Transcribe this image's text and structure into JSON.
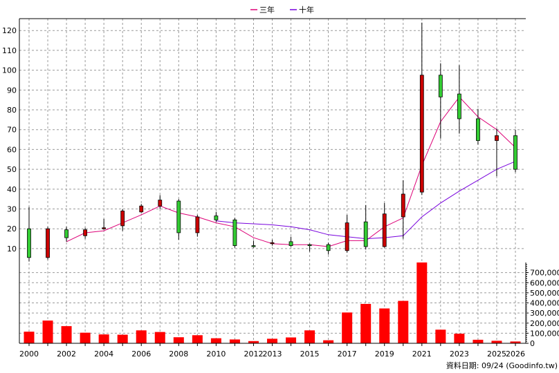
{
  "legend": {
    "placement": "top-center",
    "items": [
      {
        "label": "三年",
        "color": "#dd0077"
      },
      {
        "label": "十年",
        "color": "#7700dd"
      }
    ]
  },
  "footer_note": "資料日期: 09/24  (Goodinfo.tw)",
  "chart_data": [
    {
      "type": "candlestick",
      "title": "",
      "xlabel": "",
      "ylabel": "",
      "ylim": [
        3,
        126
      ],
      "yticks": [
        10,
        20,
        30,
        40,
        50,
        60,
        70,
        80,
        90,
        100,
        110,
        120
      ],
      "grid": true,
      "up_color": "#33cc33",
      "down_color": "#cc0000",
      "years": [
        2000,
        2001,
        2002,
        2003,
        2004,
        2005,
        2006,
        2007,
        2008,
        2009,
        2010,
        2011,
        2012,
        2013,
        2014,
        2015,
        2016,
        2017,
        2018,
        2019,
        2020,
        2021,
        2022,
        2023,
        2024,
        2025,
        2026
      ],
      "candles": [
        {
          "year": 2000,
          "open": 5.5,
          "close": 20,
          "high": 31,
          "low": 3.5
        },
        {
          "year": 2001,
          "open": 20,
          "close": 5.5,
          "high": 21,
          "low": 4.5
        },
        {
          "year": 2002,
          "open": 15.5,
          "close": 19.5,
          "high": 21,
          "low": 13.5
        },
        {
          "year": 2003,
          "open": 19.5,
          "close": 16.5,
          "high": 20.5,
          "low": 15
        },
        {
          "year": 2004,
          "open": 20.5,
          "close": 20,
          "high": 25,
          "low": 19.5
        },
        {
          "year": 2005,
          "open": 29,
          "close": 21.5,
          "high": 30,
          "low": 19
        },
        {
          "year": 2006,
          "open": 31.5,
          "close": 28.5,
          "high": 32.5,
          "low": 28
        },
        {
          "year": 2007,
          "open": 34.5,
          "close": 31.5,
          "high": 37,
          "low": 30
        },
        {
          "year": 2008,
          "open": 18,
          "close": 34,
          "high": 35,
          "low": 14.5
        },
        {
          "year": 2009,
          "open": 26,
          "close": 18,
          "high": 27,
          "low": 16
        },
        {
          "year": 2010,
          "open": 24.5,
          "close": 26.5,
          "high": 28.5,
          "low": 23.5
        },
        {
          "year": 2011,
          "open": 11.5,
          "close": 24.5,
          "high": 25.5,
          "low": 10.5
        },
        {
          "year": 2012,
          "open": 11.5,
          "close": 11.5,
          "high": 14,
          "low": 10.5
        },
        {
          "year": 2013,
          "open": 13,
          "close": 12.5,
          "high": 14.5,
          "low": 11.5
        },
        {
          "year": 2014,
          "open": 11.5,
          "close": 13.5,
          "high": 16,
          "low": 11
        },
        {
          "year": 2015,
          "open": 12,
          "close": 12,
          "high": 12.5,
          "low": 8.5
        },
        {
          "year": 2016,
          "open": 9,
          "close": 12,
          "high": 13,
          "low": 7
        },
        {
          "year": 2017,
          "open": 23,
          "close": 9,
          "high": 27,
          "low": 8
        },
        {
          "year": 2018,
          "open": 11,
          "close": 23.5,
          "high": 32,
          "low": 9.5
        },
        {
          "year": 2019,
          "open": 27.5,
          "close": 11,
          "high": 33,
          "low": 10.5
        },
        {
          "year": 2020,
          "open": 37.5,
          "close": 26,
          "high": 44.5,
          "low": 15
        },
        {
          "year": 2021,
          "open": 97.5,
          "close": 38.5,
          "high": 124,
          "low": 37
        },
        {
          "year": 2022,
          "open": 86.5,
          "close": 97.5,
          "high": 103.5,
          "low": 65.5
        },
        {
          "year": 2023,
          "open": 75.5,
          "close": 88,
          "high": 102.5,
          "low": 68
        },
        {
          "year": 2024,
          "open": 64.5,
          "close": 75.5,
          "high": 80.5,
          "low": 62.5
        },
        {
          "year": 2025,
          "open": 67,
          "close": 64.5,
          "high": 70.5,
          "low": 46.5
        },
        {
          "year": 2026,
          "open": 50,
          "close": 67,
          "high": 70,
          "low": 48.5
        }
      ],
      "series": [
        {
          "name": "三年",
          "color": "#dd0077",
          "x": [
            2002,
            2003,
            2004,
            2005,
            2006,
            2007,
            2008,
            2009,
            2010,
            2011,
            2012,
            2013,
            2014,
            2015,
            2016,
            2017,
            2018,
            2019,
            2020,
            2021,
            2022,
            2023,
            2024,
            2025,
            2026
          ],
          "values": [
            13.5,
            18,
            19,
            23,
            27,
            31.5,
            28,
            26,
            23,
            21,
            15.5,
            12.5,
            12,
            12,
            11,
            14,
            14,
            21,
            25.5,
            52,
            74,
            86.5,
            76.5,
            70,
            61
          ]
        },
        {
          "name": "十年",
          "color": "#7700dd",
          "x": [
            2010,
            2011,
            2012,
            2013,
            2014,
            2015,
            2016,
            2017,
            2018,
            2019,
            2020,
            2021,
            2022,
            2023,
            2024,
            2025,
            2026
          ],
          "values": [
            24,
            23,
            22.5,
            22,
            21,
            19.5,
            17,
            16,
            15,
            15.5,
            16.5,
            26,
            33,
            39,
            44.5,
            50,
            54
          ]
        }
      ]
    },
    {
      "type": "bar",
      "title": "",
      "xlabel": "",
      "ylabel": "",
      "ylim": [
        0,
        800000
      ],
      "yticks": [
        0,
        100000,
        200000,
        300000,
        400000,
        500000,
        600000,
        700000
      ],
      "ytick_labels": [
        "0",
        "100,000",
        "200,000",
        "300,000",
        "400,000",
        "500,000",
        "600,000",
        "700,000"
      ],
      "color": "#ff0000",
      "categories": [
        "2000",
        "2001",
        "2002",
        "2003",
        "2004",
        "2005",
        "2006",
        "2007",
        "2008",
        "2009",
        "2010",
        "2011",
        "2012",
        "2013",
        "2014",
        "2015",
        "2016",
        "2017",
        "2018",
        "2019",
        "2020",
        "2021",
        "2022",
        "2023",
        "2024",
        "2025",
        "2026"
      ],
      "values": [
        115000,
        225000,
        170000,
        105000,
        88000,
        85000,
        128000,
        112000,
        60000,
        80000,
        50000,
        38000,
        22000,
        45000,
        58000,
        128000,
        30000,
        305000,
        390000,
        345000,
        420000,
        815000,
        135000,
        95000,
        35000,
        25000,
        18000
      ]
    }
  ],
  "x_axis": {
    "labels": [
      "2000",
      "2002",
      "2004",
      "2006",
      "2008",
      "2010",
      "2012",
      "2013",
      "2015",
      "2017",
      "2019",
      "2021",
      "2023",
      "2025",
      "2026"
    ]
  }
}
